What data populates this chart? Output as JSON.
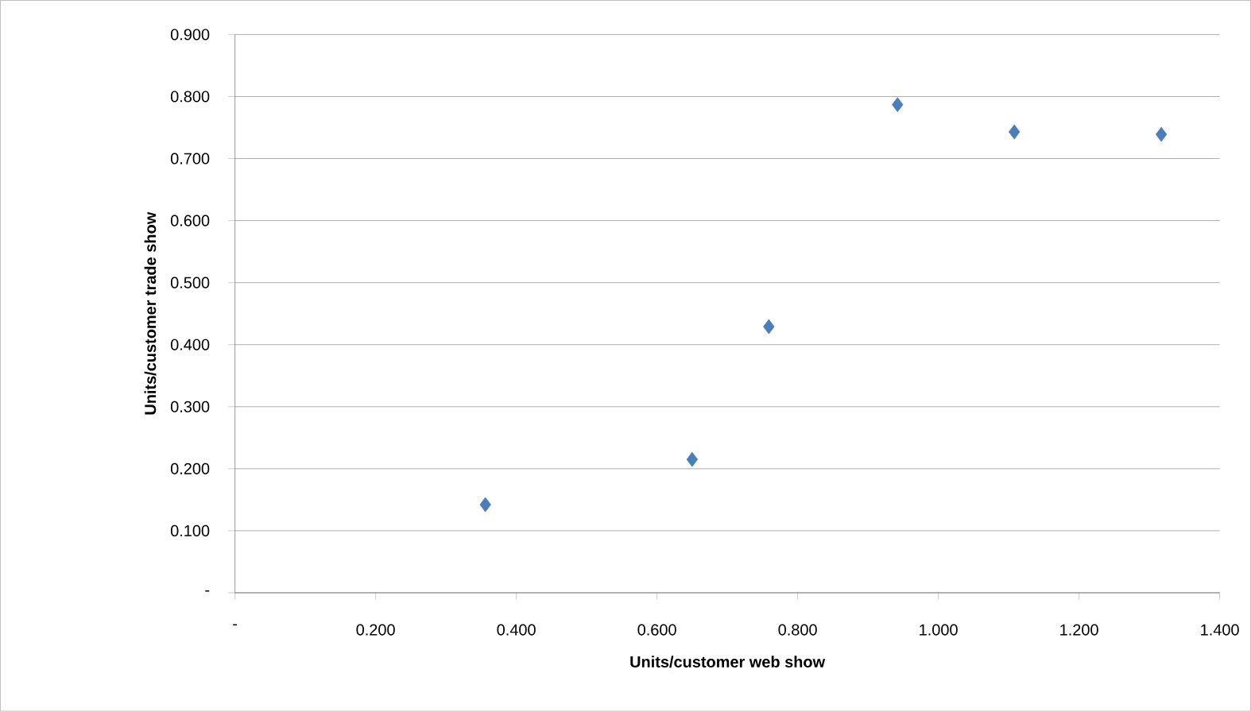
{
  "chart_data": {
    "type": "scatter",
    "xlabel": "Units/customer web show",
    "ylabel": "Units/customer trade show",
    "x": [
      0.356,
      0.65,
      0.759,
      0.942,
      1.108,
      1.317
    ],
    "values": [
      0.142,
      0.215,
      0.429,
      0.787,
      0.743,
      0.739
    ],
    "color": "#4a7ebb",
    "marker": "diamond",
    "grid": "y",
    "xlim": [
      0,
      1.4
    ],
    "ylim": [
      0,
      0.9
    ],
    "xticks": [
      {
        "value": 0,
        "label": "-"
      },
      {
        "value": 0.2,
        "label": "0.200"
      },
      {
        "value": 0.4,
        "label": "0.400"
      },
      {
        "value": 0.6,
        "label": "0.600"
      },
      {
        "value": 0.8,
        "label": "0.800"
      },
      {
        "value": 1.0,
        "label": "1.000"
      },
      {
        "value": 1.2,
        "label": "1.200"
      },
      {
        "value": 1.4,
        "label": "1.400"
      }
    ],
    "yticks": [
      {
        "value": 0,
        "label": "-"
      },
      {
        "value": 0.1,
        "label": "0.100"
      },
      {
        "value": 0.2,
        "label": "0.200"
      },
      {
        "value": 0.3,
        "label": "0.300"
      },
      {
        "value": 0.4,
        "label": "0.400"
      },
      {
        "value": 0.5,
        "label": "0.500"
      },
      {
        "value": 0.6,
        "label": "0.600"
      },
      {
        "value": 0.7,
        "label": "0.700"
      },
      {
        "value": 0.8,
        "label": "0.800"
      },
      {
        "value": 0.9,
        "label": "0.900"
      }
    ]
  }
}
